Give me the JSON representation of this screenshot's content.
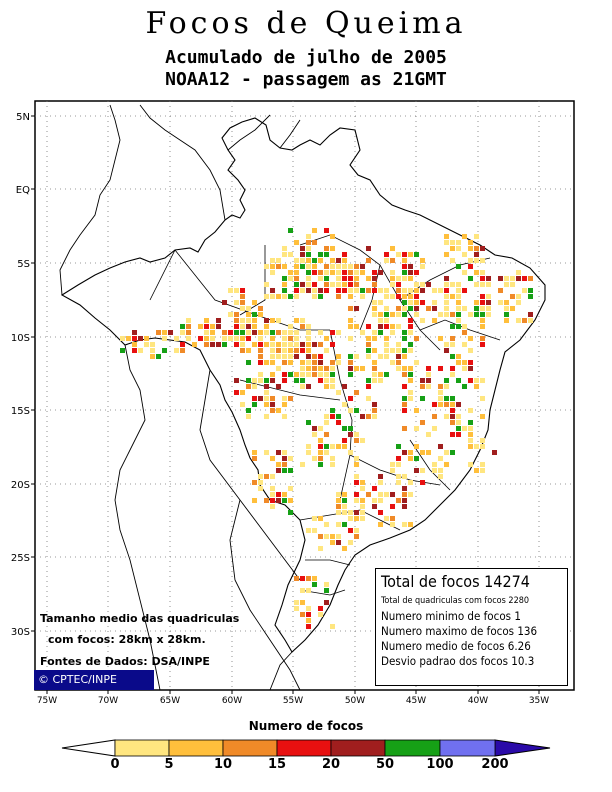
{
  "title": "Focos de Queima",
  "subtitle_line1": "Acumulado de julho de 2005",
  "subtitle_line2": "NOAA12 - passagem as 21GMT",
  "axes": {
    "lat_labels": [
      "5N",
      "EQ",
      "5S",
      "10S",
      "15S",
      "20S",
      "25S",
      "30S"
    ],
    "lon_labels": [
      "75W",
      "70W",
      "65W",
      "60W",
      "55W",
      "50W",
      "45W",
      "40W",
      "35W"
    ]
  },
  "stats": {
    "total": "Total de focos 14274",
    "cells": "Total de quadriculas com focos 2280",
    "min": "Numero minimo de focos 1",
    "max": "Numero maximo de focos 136",
    "mean": "Numero medio de focos 6.26",
    "std": "Desvio padrao dos focos 10.3"
  },
  "notes": {
    "cell_size_1": "Tamanho medio das quadriculas",
    "cell_size_2": "com focos: 28km x 28km.",
    "sources": "Fontes de Dados: DSA/INPE"
  },
  "badge": "© CPTEC/INPE",
  "legend": {
    "title": "Numero de focos",
    "ticks": [
      "0",
      "5",
      "10",
      "15",
      "20",
      "50",
      "100",
      "200"
    ],
    "colors": [
      "#ffe680",
      "#ffbf3c",
      "#f08a28",
      "#e81010",
      "#a01e1e",
      "#16a016",
      "#7070f0",
      "#2a0aa8"
    ]
  }
}
